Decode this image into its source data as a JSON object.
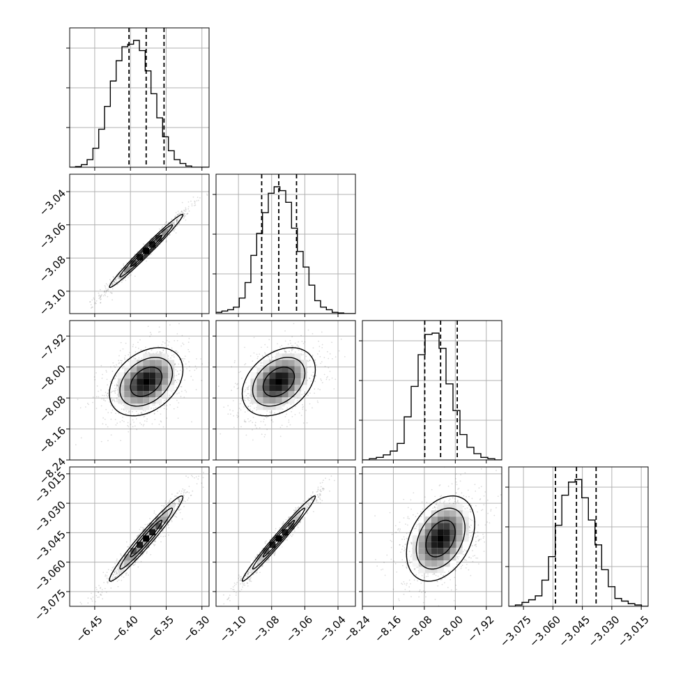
{
  "chart_data": {
    "type": "corner",
    "grid": true,
    "parameters": [
      {
        "range": [
          -6.485,
          -6.29
        ],
        "ticks": [
          -6.45,
          -6.4,
          -6.35,
          -6.3
        ],
        "tick_labels": [
          "−6.45",
          "−6.40",
          "−6.35",
          "−6.30"
        ],
        "quantiles": [
          -6.402,
          -6.378,
          -6.353
        ],
        "histogram": [
          0,
          0.005,
          0.02,
          0.06,
          0.15,
          0.3,
          0.48,
          0.68,
          0.84,
          0.95,
          0.97,
          1.0,
          0.92,
          0.76,
          0.58,
          0.39,
          0.24,
          0.13,
          0.06,
          0.03,
          0.01,
          0,
          0,
          0
        ]
      },
      {
        "range": [
          -3.1135,
          -3.0295
        ],
        "ticks": [
          -3.1,
          -3.08,
          -3.06,
          -3.04
        ],
        "tick_labels": [
          "−3.10",
          "−3.08",
          "−3.06",
          "−3.04"
        ],
        "quantiles": [
          -3.086,
          -3.0757,
          -3.065
        ],
        "histogram": [
          0.01,
          0.02,
          0.03,
          0.05,
          0.12,
          0.24,
          0.45,
          0.62,
          0.78,
          0.93,
          0.98,
          0.95,
          0.86,
          0.66,
          0.48,
          0.36,
          0.22,
          0.1,
          0.05,
          0.03,
          0.01,
          0.005,
          0,
          0
        ]
      },
      {
        "range": [
          -8.24,
          -7.88
        ],
        "ticks": [
          -8.24,
          -8.16,
          -8.08,
          -8.0,
          -7.92
        ],
        "tick_labels": [
          "−8.24",
          "−8.16",
          "−8.08",
          "−8.00",
          "−7.92"
        ],
        "quantiles": [
          -8.079,
          -8.038,
          -7.995
        ],
        "histogram": [
          0,
          0.01,
          0.02,
          0.04,
          0.07,
          0.13,
          0.34,
          0.58,
          0.83,
          0.99,
          1.0,
          0.88,
          0.6,
          0.39,
          0.2,
          0.1,
          0.05,
          0.02,
          0.01,
          0
        ]
      },
      {
        "range": [
          -3.0825,
          -3.0115
        ],
        "ticks": [
          -3.075,
          -3.06,
          -3.045,
          -3.03,
          -3.015
        ],
        "tick_labels": [
          "−3.075",
          "−3.060",
          "−3.045",
          "−3.030",
          "−3.015"
        ],
        "quantiles": [
          -3.0587,
          -3.048,
          -3.038
        ],
        "histogram": [
          0,
          0.01,
          0.03,
          0.05,
          0.08,
          0.2,
          0.38,
          0.62,
          0.85,
          0.95,
          0.97,
          0.83,
          0.66,
          0.47,
          0.28,
          0.15,
          0.06,
          0.04,
          0.02,
          0.01,
          0
        ]
      }
    ],
    "pairs": [
      {
        "row": 1,
        "col": 0,
        "rho": 0.985
      },
      {
        "row": 2,
        "col": 0,
        "rho": 0.35
      },
      {
        "row": 2,
        "col": 1,
        "rho": 0.35
      },
      {
        "row": 3,
        "col": 0,
        "rho": 0.97
      },
      {
        "row": 3,
        "col": 1,
        "rho": 0.985
      },
      {
        "row": 3,
        "col": 2,
        "rho": 0.35
      }
    ]
  },
  "style": {
    "line_color": "#000000",
    "grid_color": "#b0b0b0",
    "scatter_color": "#000000"
  }
}
